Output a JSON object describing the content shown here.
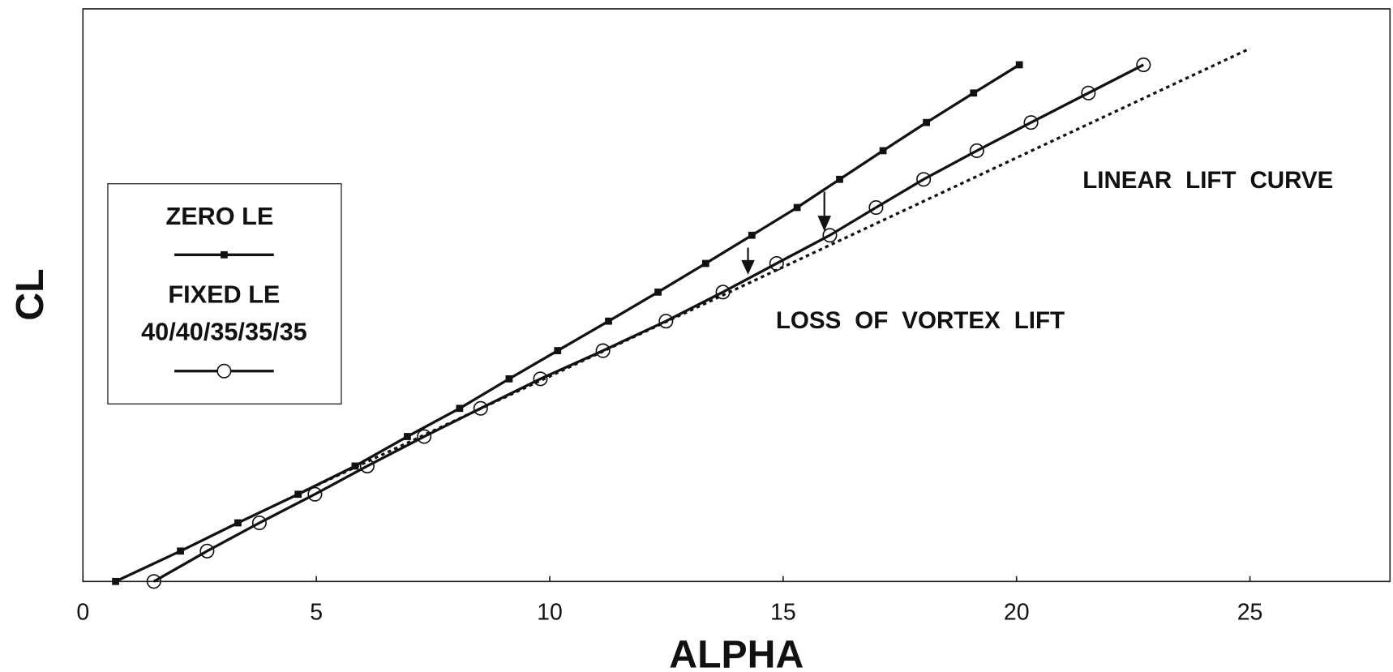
{
  "chart_data": {
    "type": "line",
    "x_label": "ALPHA",
    "y_label": "CL",
    "xlim": [
      0,
      28
    ],
    "ylim": [
      0,
      1.3
    ],
    "xticks": [
      0,
      5,
      10,
      15,
      20,
      25
    ],
    "grid": false,
    "legend_position": "left",
    "legend_note": "40/40/35/35/35",
    "series": [
      {
        "name": "ZERO LE",
        "color": "#111111",
        "marker": "square",
        "style": "solid",
        "x": [
          0.7,
          2.09,
          3.32,
          4.61,
          5.83,
          6.95,
          8.07,
          9.13,
          10.17,
          11.26,
          12.32,
          13.34,
          14.33,
          15.3,
          16.21,
          17.14,
          18.07,
          19.08,
          20.06
        ],
        "values": [
          0,
          0.069,
          0.133,
          0.198,
          0.262,
          0.329,
          0.393,
          0.46,
          0.524,
          0.591,
          0.657,
          0.722,
          0.786,
          0.849,
          0.913,
          0.978,
          1.042,
          1.109,
          1.173
        ]
      },
      {
        "name": "FIXED LE",
        "color": "#111111",
        "marker": "circle",
        "style": "solid",
        "x": [
          1.52,
          2.66,
          3.78,
          4.97,
          6.09,
          7.31,
          8.52,
          9.8,
          11.14,
          12.49,
          13.71,
          14.86,
          16.0,
          16.99,
          18.01,
          19.15,
          20.31,
          21.54,
          22.72
        ],
        "values": [
          0,
          0.069,
          0.133,
          0.198,
          0.262,
          0.329,
          0.393,
          0.46,
          0.524,
          0.591,
          0.657,
          0.722,
          0.786,
          0.849,
          0.913,
          0.978,
          1.042,
          1.109,
          1.173
        ]
      },
      {
        "name": "LINEAR LIFT CURVE",
        "color": "#111111",
        "marker": "none",
        "style": "dotted",
        "x": [
          4.6,
          25
        ],
        "values": [
          0.198,
          1.21
        ]
      }
    ],
    "annotations": [
      "LINEAR LIFT CURVE",
      "LOSS OF VORTEX LIFT"
    ]
  }
}
